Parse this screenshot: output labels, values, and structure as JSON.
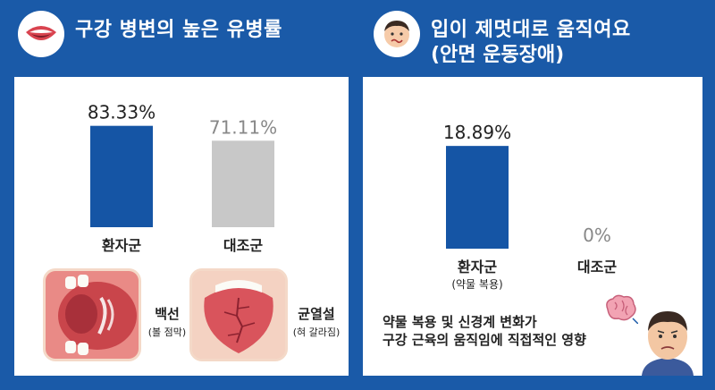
{
  "left": {
    "title": "구강 병변의 높은 유병률",
    "icon": "mouth-icon"
  },
  "right": {
    "title": "입이 제멋대로 움직여요",
    "subtitle": "(안면 운동장애)",
    "icon": "face-icon"
  },
  "chart_data": [
    {
      "type": "bar",
      "categories": [
        "환자군",
        "대조군"
      ],
      "values": [
        83.33,
        71.11
      ],
      "value_labels": [
        "83.33%",
        "71.11%"
      ],
      "colors": [
        "#1555a5",
        "#c8c8c8"
      ],
      "title": "구강 병변의 높은 유병률",
      "ylim": [
        0,
        100
      ]
    },
    {
      "type": "bar",
      "categories": [
        "환자군",
        "대조군"
      ],
      "category_subtitles": [
        "(약물 복용)",
        ""
      ],
      "values": [
        18.89,
        0
      ],
      "value_labels": [
        "18.89%",
        "0%"
      ],
      "colors": [
        "#1555a5",
        "#c8c8c8"
      ],
      "title": "입이 제멋대로 움직여요",
      "ylim": [
        0,
        25
      ]
    }
  ],
  "lesions": [
    {
      "label": "백선",
      "sub": "(볼 점막)",
      "icon": "cheek-mucosa-icon"
    },
    {
      "label": "균열설",
      "sub": "(혀 갈라짐)",
      "icon": "fissured-tongue-icon"
    }
  ],
  "note": {
    "line1": "약물 복용 및 신경계 변화가",
    "line2": "구강 근육의 움직임에 직접적인 영향",
    "icon": "brain-icon"
  }
}
